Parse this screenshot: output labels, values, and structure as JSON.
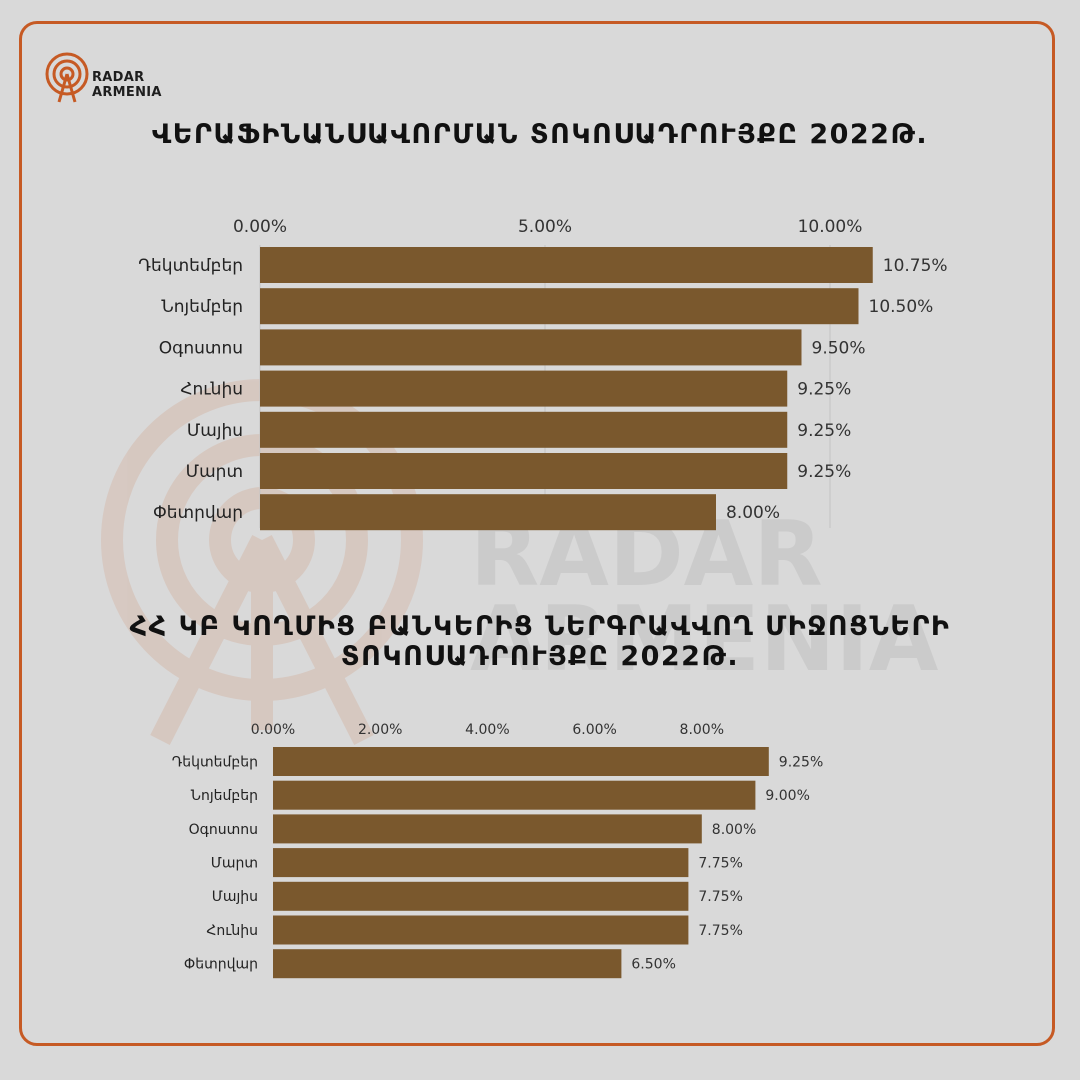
{
  "brand": {
    "name_line1": "RADAR",
    "name_line2": "ARMENIA",
    "watermark_line1": "RADAR",
    "watermark_line2": "ARMENIA",
    "accent_color": "#c65a24"
  },
  "titles": {
    "chart1": "ՎԵՐԱՖԻՆԱՆՍԱՎՈՐՄԱՆ ՏՈԿՈՍԱԴՐՈՒՅՔԸ 2022Թ.",
    "chart2_line1": "ՀՀ ԿԲ ԿՈՂՄԻՑ ԲԱՆԿԵՐԻՑ ՆԵՐԳՐԱՎՎՈՂ ՄԻՋՈՑՆԵՐԻ",
    "chart2_line2": "ՏՈԿՈՍԱԴՐՈՒՅՔԸ 2022Թ."
  },
  "chart_data": [
    {
      "type": "bar",
      "orientation": "horizontal",
      "bar_color": "#7a582d",
      "grid": true,
      "xlim": [
        0,
        10.75
      ],
      "x_ticks": [
        "0.00%",
        "5.00%",
        "10.00%"
      ],
      "x_tick_values": [
        0,
        5,
        10
      ],
      "categories": [
        "Դեկտեմբեր",
        "Նոյեմբեր",
        "Օգոստոս",
        "Հունիս",
        "Մայիս",
        "Մարտ",
        "Փետրվար"
      ],
      "values": [
        10.75,
        10.5,
        9.5,
        9.25,
        9.25,
        9.25,
        8.0
      ],
      "value_labels": [
        "10.75%",
        "10.50%",
        "9.50%",
        "9.25%",
        "9.25%",
        "9.25%",
        "8.00%"
      ]
    },
    {
      "type": "bar",
      "orientation": "horizontal",
      "bar_color": "#7a582d",
      "grid": false,
      "xlim": [
        0,
        9.25
      ],
      "x_ticks": [
        "0.00%",
        "2.00%",
        "4.00%",
        "6.00%",
        "8.00%"
      ],
      "x_tick_values": [
        0,
        2,
        4,
        6,
        8
      ],
      "categories": [
        "Դեկտեմբեր",
        "Նոյեմբեր",
        "Օգոստոս",
        "Մարտ",
        "Մայիս",
        "Հունիս",
        "Փետրվար"
      ],
      "values": [
        9.25,
        9.0,
        8.0,
        7.75,
        7.75,
        7.75,
        6.5
      ],
      "value_labels": [
        "9.25%",
        "9.00%",
        "8.00%",
        "7.75%",
        "7.75%",
        "7.75%",
        "6.50%"
      ]
    }
  ]
}
